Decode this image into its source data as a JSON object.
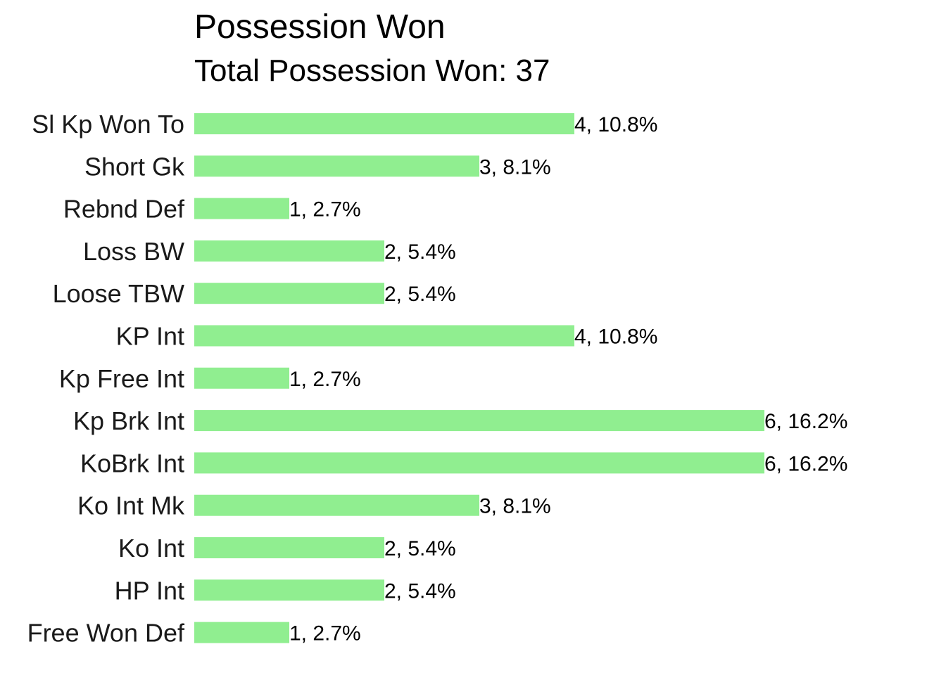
{
  "chart_data": {
    "type": "bar",
    "orientation": "horizontal",
    "title": "Possession Won",
    "subtitle": "Total Possession Won: 37",
    "xlabel": "",
    "ylabel": "",
    "grid": false,
    "legend": "none",
    "xlim": [
      0,
      6.5
    ],
    "bar_color": "#90EE90",
    "categories": [
      "Sl Kp Won To",
      "Short Gk",
      "Rebnd Def",
      "Loss BW",
      "Loose TBW",
      "KP Int",
      "Kp Free Int",
      "Kp Brk Int",
      "KoBrk Int",
      "Ko Int Mk",
      "Ko Int",
      "HP Int",
      "Free Won Def"
    ],
    "values": [
      4,
      3,
      1,
      2,
      2,
      4,
      1,
      6,
      6,
      3,
      2,
      2,
      1
    ],
    "data_labels": [
      "4, 10.8%",
      "3, 8.1%",
      "1, 2.7%",
      "2, 5.4%",
      "2, 5.4%",
      "4, 10.8%",
      "1, 2.7%",
      "6, 16.2%",
      "6, 16.2%",
      "3, 8.1%",
      "2, 5.4%",
      "2, 5.4%",
      "1, 2.7%"
    ]
  }
}
